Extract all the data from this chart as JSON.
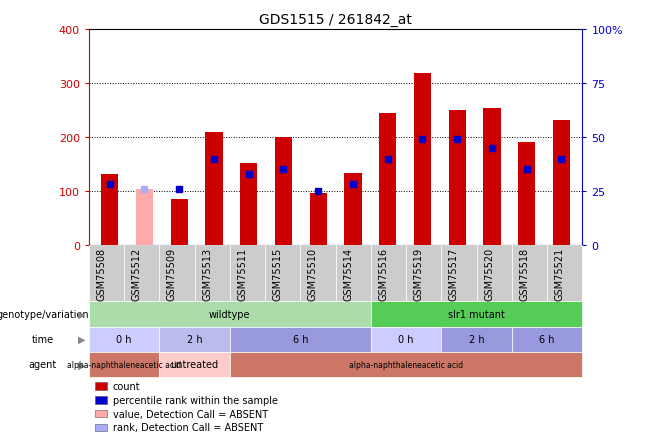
{
  "title": "GDS1515 / 261842_at",
  "samples": [
    "GSM75508",
    "GSM75512",
    "GSM75509",
    "GSM75513",
    "GSM75511",
    "GSM75515",
    "GSM75510",
    "GSM75514",
    "GSM75516",
    "GSM75519",
    "GSM75517",
    "GSM75520",
    "GSM75518",
    "GSM75521"
  ],
  "counts": [
    132,
    103,
    85,
    210,
    152,
    200,
    97,
    133,
    244,
    320,
    251,
    255,
    191,
    231
  ],
  "percentile_ranks": [
    28,
    26,
    26,
    40,
    33,
    35,
    25,
    28,
    40,
    49,
    49,
    45,
    35,
    40
  ],
  "absent": [
    false,
    true,
    false,
    false,
    false,
    false,
    false,
    false,
    false,
    false,
    false,
    false,
    false,
    false
  ],
  "ylim_left": [
    0,
    400
  ],
  "ylim_right": [
    0,
    100
  ],
  "yticks_left": [
    0,
    100,
    200,
    300,
    400
  ],
  "yticks_right": [
    0,
    25,
    50,
    75,
    100
  ],
  "yticklabels_right": [
    "0",
    "25",
    "50",
    "75",
    "100%"
  ],
  "left_axis_color": "#cc0000",
  "right_axis_color": "#0000cc",
  "bar_color_normal": "#cc0000",
  "bar_color_absent": "#ffaaaa",
  "dot_color_normal": "#0000cc",
  "dot_color_absent": "#aaaaff",
  "annotation_rows": [
    {
      "label": "genotype/variation",
      "groups": [
        {
          "text": "wildtype",
          "start": 0,
          "end": 7,
          "color": "#aaddaa"
        },
        {
          "text": "slr1 mutant",
          "start": 8,
          "end": 13,
          "color": "#55cc55"
        }
      ]
    },
    {
      "label": "time",
      "groups": [
        {
          "text": "0 h",
          "start": 0,
          "end": 1,
          "color": "#ccccff"
        },
        {
          "text": "2 h",
          "start": 2,
          "end": 3,
          "color": "#bbbbee"
        },
        {
          "text": "6 h",
          "start": 4,
          "end": 7,
          "color": "#9999dd"
        },
        {
          "text": "0 h",
          "start": 8,
          "end": 9,
          "color": "#ccccff"
        },
        {
          "text": "2 h",
          "start": 10,
          "end": 11,
          "color": "#9999dd"
        },
        {
          "text": "6 h",
          "start": 12,
          "end": 13,
          "color": "#9999dd"
        }
      ]
    },
    {
      "label": "agent",
      "groups": [
        {
          "text": "alpha-naphthaleneacetic acid",
          "start": 0,
          "end": 1,
          "color": "#cc7766"
        },
        {
          "text": "untreated",
          "start": 2,
          "end": 3,
          "color": "#ffcccc"
        },
        {
          "text": "alpha-naphthaleneacetic acid",
          "start": 4,
          "end": 13,
          "color": "#cc7766"
        }
      ]
    }
  ],
  "legend_items": [
    {
      "color": "#cc0000",
      "label": "count"
    },
    {
      "color": "#0000cc",
      "label": "percentile rank within the sample"
    },
    {
      "color": "#ffaaaa",
      "label": "value, Detection Call = ABSENT"
    },
    {
      "color": "#aaaaff",
      "label": "rank, Detection Call = ABSENT"
    }
  ],
  "xtick_bg": "#cccccc",
  "xtick_fontsize": 7,
  "bar_width": 0.5
}
